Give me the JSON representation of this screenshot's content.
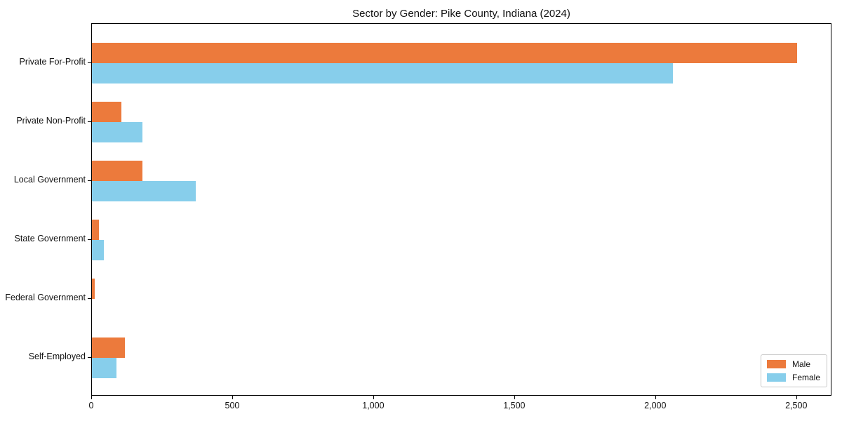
{
  "chart_data": {
    "type": "bar",
    "orientation": "horizontal",
    "title": "Sector by Gender: Pike County, Indiana (2024)",
    "categories": [
      "Private For-Profit",
      "Private Non-Profit",
      "Local Government",
      "State Government",
      "Federal Government",
      "Self-Employed"
    ],
    "series": [
      {
        "name": "Male",
        "color": "#ec7a3c",
        "values": [
          2500,
          105,
          180,
          25,
          10,
          118
        ]
      },
      {
        "name": "Female",
        "color": "#87ceeb",
        "values": [
          2060,
          178,
          369,
          43,
          0,
          86
        ]
      }
    ],
    "xlabel": "",
    "ylabel": "",
    "xlim": [
      0,
      2625
    ],
    "x_ticks": {
      "values": [
        0,
        500,
        1000,
        1500,
        2000,
        2500
      ],
      "labels": [
        "0",
        "500",
        "1,000",
        "1,500",
        "2,000",
        "2,500"
      ]
    },
    "grid": false,
    "legend": {
      "position": "lower right"
    }
  }
}
